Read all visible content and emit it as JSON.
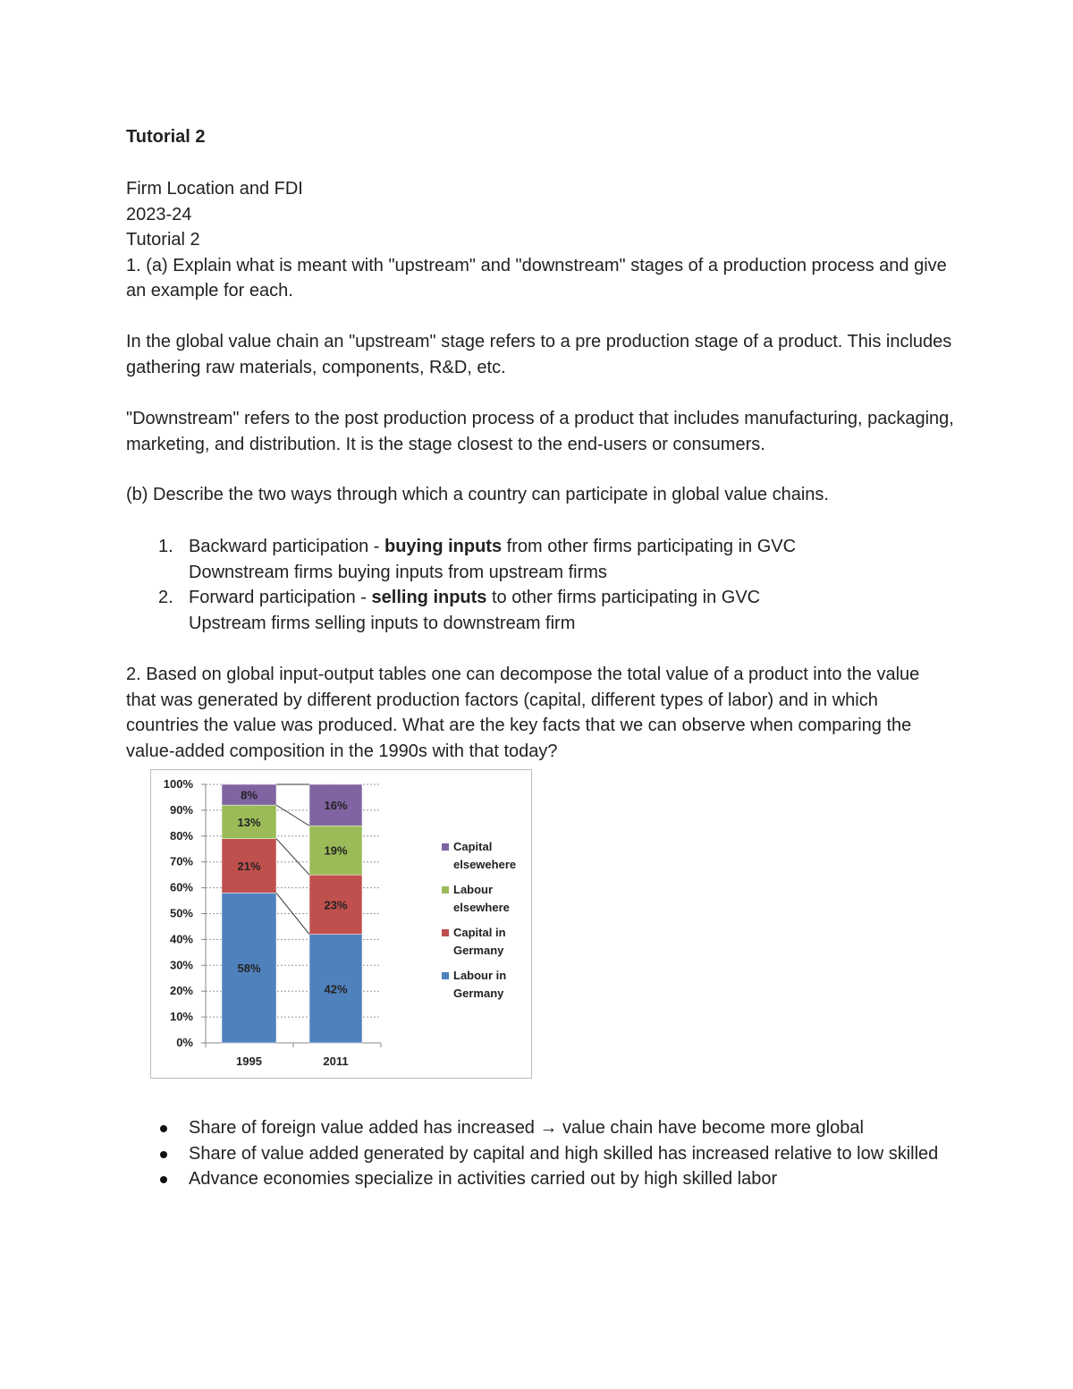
{
  "title": "Tutorial 2",
  "header_lines": [
    "Firm Location and FDI",
    "2023-24",
    "Tutorial 2"
  ],
  "q1a": "1. (a) Explain what is meant with \"upstream\" and \"downstream\" stages of a production process and give an example for each.",
  "a1a_upstream": "In the global value chain an \"upstream\" stage refers to a pre production stage of a product. This includes gathering raw materials, components, R&D, etc.",
  "a1a_downstream": "\"Downstream\" refers to the post production process of a product that includes manufacturing, packaging, marketing, and distribution. It is the stage closest to the end-users or consumers.",
  "q1b": "(b) Describe the two ways through which a country can participate in global value chains.",
  "list": [
    {
      "num": "1.",
      "pre": "Backward participation - ",
      "bold": "buying inputs",
      "post": " from other firms participating in GVC",
      "sub": "Downstream firms buying inputs from upstream firms"
    },
    {
      "num": "2.",
      "pre": "Forward participation - ",
      "bold": "selling inputs",
      "post": " to other firms participating in GVC",
      "sub": "Upstream firms selling inputs to downstream firm"
    }
  ],
  "q2": "2. Based on global input-output tables one can decompose the total value of a product into the value that was generated by different production factors (capital, different types of labor) and in which countries the value was produced. What are the key facts that we can observe when comparing the value-added composition in the 1990s with that today?",
  "chart_data": {
    "type": "bar",
    "stacked": true,
    "categories": [
      "1995",
      "2011"
    ],
    "series": [
      {
        "name": "Labour in Germany",
        "values": [
          58,
          42
        ],
        "color": "#4F81BD"
      },
      {
        "name": "Capital in Germany",
        "values": [
          21,
          23
        ],
        "color": "#C0504D"
      },
      {
        "name": "Labour elsewhere",
        "values": [
          13,
          19
        ],
        "color": "#9BBB59"
      },
      {
        "name": "Capital elsewhere",
        "values": [
          8,
          16
        ],
        "color": "#8064A2"
      }
    ],
    "legend_lines": [
      [
        "Capital",
        "elsewehere"
      ],
      [
        "Labour",
        "elsewhere"
      ],
      [
        "Capital in",
        "Germany"
      ],
      [
        "Labour in",
        "Germany"
      ]
    ],
    "yticks": [
      "0%",
      "10%",
      "20%",
      "30%",
      "40%",
      "50%",
      "60%",
      "70%",
      "80%",
      "90%",
      "100%"
    ],
    "ylim": [
      0,
      100
    ],
    "grid": true,
    "legend": "right"
  },
  "bullets": [
    "Share of foreign value added has increased → value chain have become more global",
    "Share of value added generated by capital and high skilled has increased relative to low skilled",
    "Advance economies specialize in activities carried out by high skilled labor"
  ]
}
